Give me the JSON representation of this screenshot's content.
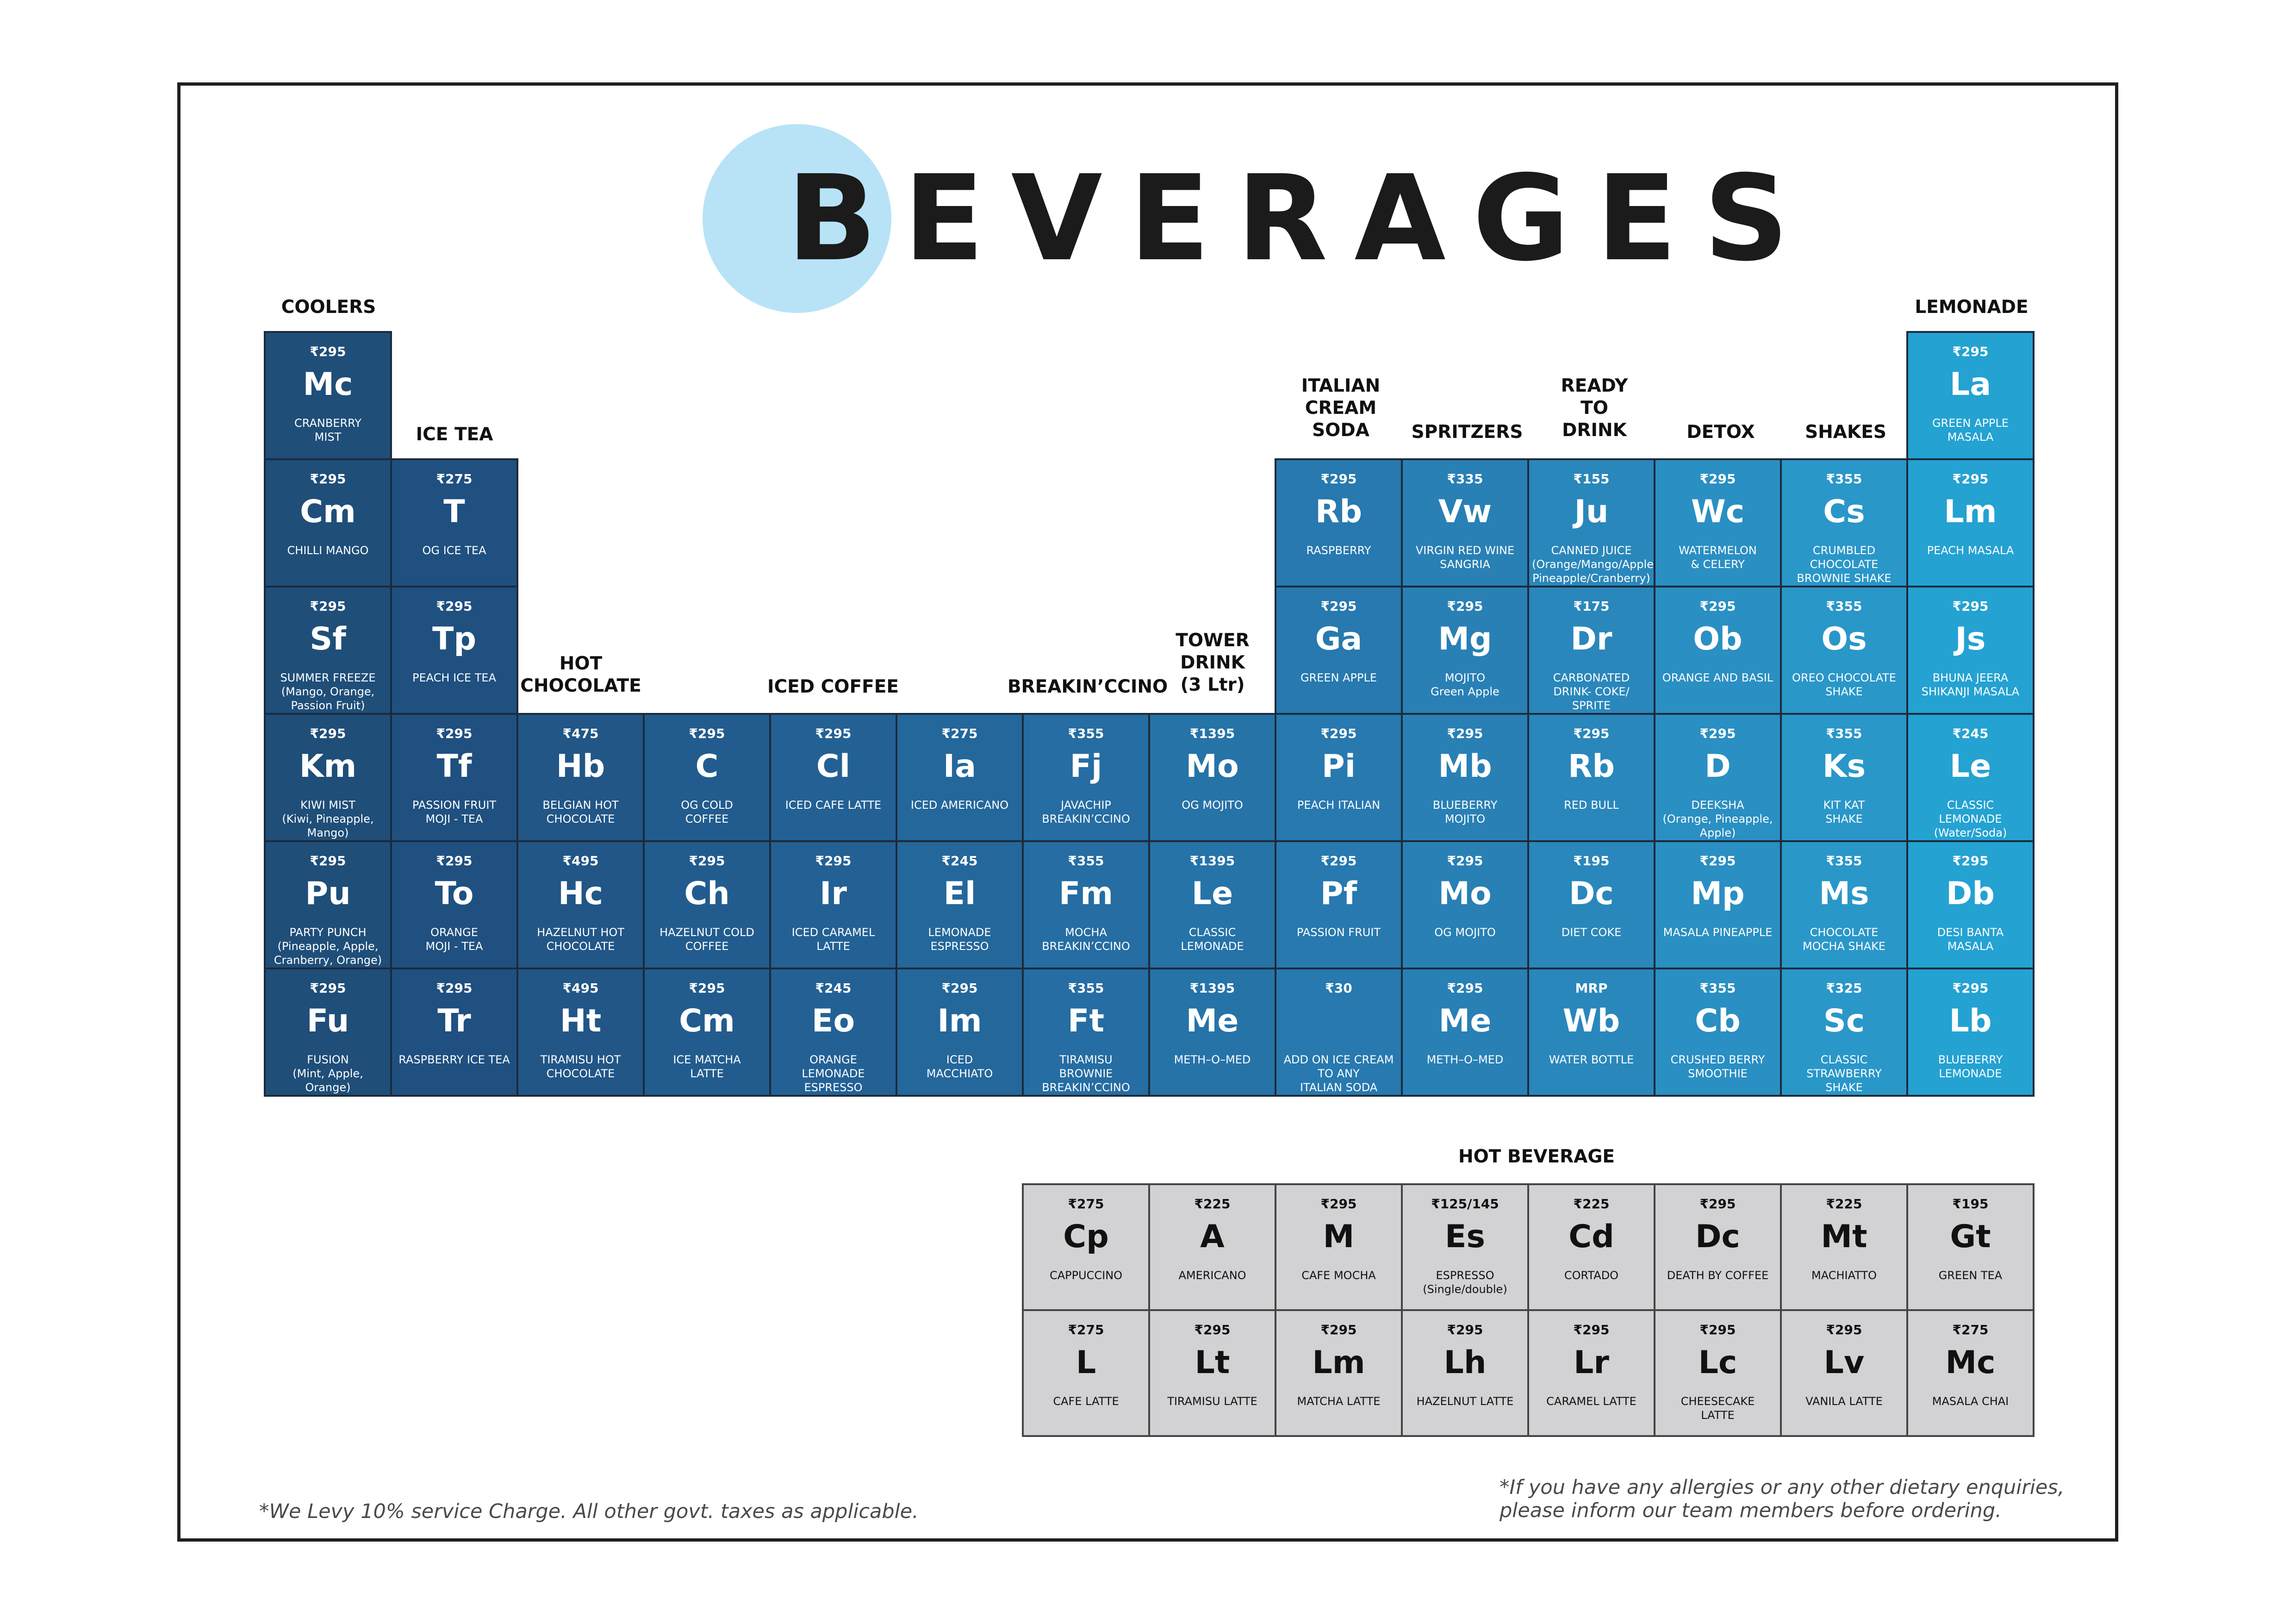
{
  "title": "BEVERAGES",
  "colors": {
    "accent_circle": "#b8e3f7",
    "hot_bg": "#d2d2d4"
  },
  "categories": [
    {
      "label": "COOLERS"
    },
    {
      "label": "ICE TEA"
    },
    {
      "label": "HOT\nCHOCOLATE"
    },
    {
      "label": "ICED COFFEE"
    },
    {
      "label": "BREAKIN’CCINO"
    },
    {
      "label": "TOWER\nDRINK\n(3 Ltr)"
    },
    {
      "label": "ITALIAN\nCREAM\nSODA"
    },
    {
      "label": "SPRITZERS"
    },
    {
      "label": "READY\nTO\nDRINK"
    },
    {
      "label": "DETOX"
    },
    {
      "label": "SHAKES"
    },
    {
      "label": "LEMONADE"
    },
    {
      "label": "HOT BEVERAGE"
    }
  ],
  "cold_cells": [
    {
      "price": "₹295",
      "symbol": "Mc",
      "name": "CRANBERRY\nMIST",
      "color": "#1f4e79"
    },
    {
      "price": "₹295",
      "symbol": "Cm",
      "name": "CHILLI MANGO",
      "color": "#1f4e79"
    },
    {
      "price": "₹295",
      "symbol": "Sf",
      "name": "SUMMER FREEZE\n(Mango, Orange,\nPassion Fruit)",
      "color": "#1f4e79"
    },
    {
      "price": "₹295",
      "symbol": "Km",
      "name": "KIWI MIST\n(Kiwi, Pineapple, Mango)",
      "color": "#1f4e79"
    },
    {
      "price": "₹295",
      "symbol": "Pu",
      "name": "PARTY PUNCH\n(Pineapple, Apple,\nCranberry, Orange)",
      "color": "#1f4e79"
    },
    {
      "price": "₹295",
      "symbol": "Fu",
      "name": "FUSION\n(Mint, Apple, Orange)",
      "color": "#1f4e79"
    },
    {
      "price": "₹275",
      "symbol": "T",
      "name": "OG ICE TEA",
      "color": "#1f5080"
    },
    {
      "price": "₹295",
      "symbol": "Tp",
      "name": "PEACH ICE TEA",
      "color": "#1f5080"
    },
    {
      "price": "₹295",
      "symbol": "Tf",
      "name": "PASSION FRUIT\nMOJI - TEA",
      "color": "#1f5080"
    },
    {
      "price": "₹295",
      "symbol": "To",
      "name": "ORANGE\nMOJI - TEA",
      "color": "#1f5080"
    },
    {
      "price": "₹295",
      "symbol": "Tr",
      "name": "RASPBERRY ICE TEA",
      "color": "#1f5080"
    },
    {
      "price": "₹475",
      "symbol": "Hb",
      "name": "BELGIAN HOT\nCHOCOLATE",
      "color": "#215687"
    },
    {
      "price": "₹495",
      "symbol": "Hc",
      "name": "HAZELNUT HOT\nCHOCOLATE",
      "color": "#215687"
    },
    {
      "price": "₹495",
      "symbol": "Ht",
      "name": "TIRAMISU HOT\nCHOCOLATE",
      "color": "#215687"
    },
    {
      "price": "₹295",
      "symbol": "C",
      "name": "OG COLD\nCOFFEE",
      "color": "#225c8e"
    },
    {
      "price": "₹295",
      "symbol": "Ch",
      "name": "HAZELNUT COLD\nCOFFEE",
      "color": "#225c8e"
    },
    {
      "price": "₹295",
      "symbol": "Cm",
      "name": "ICE MATCHA\nLATTE",
      "color": "#225c8e"
    },
    {
      "price": "₹295",
      "symbol": "Cl",
      "name": "ICED CAFE LATTE",
      "color": "#236195"
    },
    {
      "price": "₹295",
      "symbol": "Ir",
      "name": "ICED CARAMEL\nLATTE",
      "color": "#236195"
    },
    {
      "price": "₹245",
      "symbol": "Eo",
      "name": "ORANGE\nLEMONADE\nESPRESSO",
      "color": "#236195"
    },
    {
      "price": "₹275",
      "symbol": "Ia",
      "name": "ICED AMERICANO",
      "color": "#24679b"
    },
    {
      "price": "₹245",
      "symbol": "El",
      "name": "LEMONADE\nESPRESSO",
      "color": "#24679b"
    },
    {
      "price": "₹295",
      "symbol": "Im",
      "name": "ICED\nMACCHIATO",
      "color": "#24679b"
    },
    {
      "price": "₹355",
      "symbol": "Fj",
      "name": "JAVACHIP\nBREAKIN’CCINO",
      "color": "#256da2"
    },
    {
      "price": "₹355",
      "symbol": "Fm",
      "name": "MOCHA\nBREAKIN’CCINO",
      "color": "#256da2"
    },
    {
      "price": "₹355",
      "symbol": "Ft",
      "name": "TIRAMISU\nBROWNIE\nBREAKIN’CCINO",
      "color": "#256da2"
    },
    {
      "price": "₹1395",
      "symbol": "Mo",
      "name": "OG MOJITO",
      "color": "#2673a8"
    },
    {
      "price": "₹1395",
      "symbol": "Le",
      "name": "CLASSIC\nLEMONADE",
      "color": "#2673a8"
    },
    {
      "price": "₹1395",
      "symbol": "Me",
      "name": "METH–O–MED",
      "color": "#2673a8"
    },
    {
      "price": "₹295",
      "symbol": "Rb",
      "name": "RASPBERRY",
      "color": "#2779af"
    },
    {
      "price": "₹295",
      "symbol": "Ga",
      "name": "GREEN APPLE",
      "color": "#2779af"
    },
    {
      "price": "₹295",
      "symbol": "Pi",
      "name": "PEACH ITALIAN",
      "color": "#2779af"
    },
    {
      "price": "₹295",
      "symbol": "Pf",
      "name": "PASSION FRUIT",
      "color": "#2779af"
    },
    {
      "price": "₹30",
      "symbol": "",
      "name": "ADD ON ICE CREAM\nTO ANY\nITALIAN SODA",
      "color": "#2779af"
    },
    {
      "price": "₹335",
      "symbol": "Vw",
      "name": "VIRGIN RED WINE\nSANGRIA",
      "color": "#2980b5"
    },
    {
      "price": "₹295",
      "symbol": "Mg",
      "name": "MOJITO\nGreen Apple",
      "color": "#2980b5"
    },
    {
      "price": "₹295",
      "symbol": "Mb",
      "name": "BLUEBERRY\nMOJITO",
      "color": "#2980b5"
    },
    {
      "price": "₹295",
      "symbol": "Mo",
      "name": "OG MOJITO",
      "color": "#2980b5"
    },
    {
      "price": "₹295",
      "symbol": "Me",
      "name": "METH–O–MED",
      "color": "#2980b5"
    },
    {
      "price": "₹155",
      "symbol": "Ju",
      "name": "CANNED JUICE\n(Orange/Mango/Apple/\nPineapple/Cranberry)",
      "color": "#2a87bb"
    },
    {
      "price": "₹175",
      "symbol": "Dr",
      "name": "CARBONATED\nDRINK- COKE/\nSPRITE",
      "color": "#2a87bb"
    },
    {
      "price": "₹295",
      "symbol": "Rb",
      "name": "RED BULL",
      "color": "#2a87bb"
    },
    {
      "price": "₹195",
      "symbol": "Dc",
      "name": "DIET COKE",
      "color": "#2a87bb"
    },
    {
      "price": "MRP",
      "symbol": "Wb",
      "name": "WATER BOTTLE",
      "color": "#2a87bb"
    },
    {
      "price": "₹295",
      "symbol": "Wc",
      "name": "WATERMELON\n& CELERY",
      "color": "#2a8fc2"
    },
    {
      "price": "₹295",
      "symbol": "Ob",
      "name": "ORANGE AND BASIL",
      "color": "#2a8fc2"
    },
    {
      "price": "₹295",
      "symbol": "D",
      "name": "DEEKSHA\n(Orange, Pineapple,\nApple)",
      "color": "#2a8fc2"
    },
    {
      "price": "₹295",
      "symbol": "Mp",
      "name": "MASALA PINEAPPLE",
      "color": "#2a8fc2"
    },
    {
      "price": "₹355",
      "symbol": "Cb",
      "name": "CRUSHED BERRY\nSMOOTHIE",
      "color": "#2a8fc2"
    },
    {
      "price": "₹355",
      "symbol": "Cs",
      "name": "CRUMBLED\nCHOCOLATE\nBROWNIE SHAKE",
      "color": "#2a97c9"
    },
    {
      "price": "₹355",
      "symbol": "Os",
      "name": "OREO CHOCOLATE\nSHAKE",
      "color": "#2a97c9"
    },
    {
      "price": "₹355",
      "symbol": "Ks",
      "name": "KIT KAT\nSHAKE",
      "color": "#2a97c9"
    },
    {
      "price": "₹355",
      "symbol": "Ms",
      "name": "CHOCOLATE\nMOCHA SHAKE",
      "color": "#2a97c9"
    },
    {
      "price": "₹325",
      "symbol": "Sc",
      "name": "CLASSIC\nSTRAWBERRY\nSHAKE",
      "color": "#2a97c9"
    },
    {
      "price": "₹295",
      "symbol": "La",
      "name": "GREEN APPLE\nMASALA",
      "color": "#24a2d2"
    },
    {
      "price": "₹295",
      "symbol": "Lm",
      "name": "PEACH MASALA",
      "color": "#24a2d2"
    },
    {
      "price": "₹295",
      "symbol": "Js",
      "name": "BHUNA JEERA\nSHIKANJI MASALA",
      "color": "#24a2d2"
    },
    {
      "price": "₹245",
      "symbol": "Le",
      "name": "CLASSIC\nLEMONADE\n(Water/Soda)",
      "color": "#24a2d2"
    },
    {
      "price": "₹295",
      "symbol": "Db",
      "name": "DESI BANTA\nMASALA",
      "color": "#24a2d2"
    },
    {
      "price": "₹295",
      "symbol": "Lb",
      "name": "BLUEBERRY\nLEMONADE",
      "color": "#24a2d2"
    }
  ],
  "hot_cells": [
    {
      "price": "₹275",
      "symbol": "Cp",
      "name": "CAPPUCCINO"
    },
    {
      "price": "₹225",
      "symbol": "A",
      "name": "AMERICANO"
    },
    {
      "price": "₹295",
      "symbol": "M",
      "name": "CAFE MOCHA"
    },
    {
      "price": "₹125/145",
      "symbol": "Es",
      "name": "ESPRESSO\n(Single/double)"
    },
    {
      "price": "₹225",
      "symbol": "Cd",
      "name": "CORTADO"
    },
    {
      "price": "₹295",
      "symbol": "Dc",
      "name": "DEATH BY COFFEE"
    },
    {
      "price": "₹225",
      "symbol": "Mt",
      "name": "MACHIATTO"
    },
    {
      "price": "₹195",
      "symbol": "Gt",
      "name": "GREEN TEA"
    },
    {
      "price": "₹275",
      "symbol": "L",
      "name": "CAFE LATTE"
    },
    {
      "price": "₹295",
      "symbol": "Lt",
      "name": "TIRAMISU LATTE"
    },
    {
      "price": "₹295",
      "symbol": "Lm",
      "name": "MATCHA LATTE"
    },
    {
      "price": "₹295",
      "symbol": "Lh",
      "name": "HAZELNUT LATTE"
    },
    {
      "price": "₹295",
      "symbol": "Lr",
      "name": "CARAMEL LATTE"
    },
    {
      "price": "₹295",
      "symbol": "Lc",
      "name": "CHEESECAKE\nLATTE"
    },
    {
      "price": "₹295",
      "symbol": "Lv",
      "name": "VANILA LATTE"
    },
    {
      "price": "₹275",
      "symbol": "Mc",
      "name": "MASALA CHAI"
    }
  ],
  "notes": {
    "tax": "*We Levy 10% service Charge. All other govt. taxes as applicable.",
    "allergy": "*If you have any allergies or any other dietary enquiries,\n please inform our team members before ordering."
  }
}
